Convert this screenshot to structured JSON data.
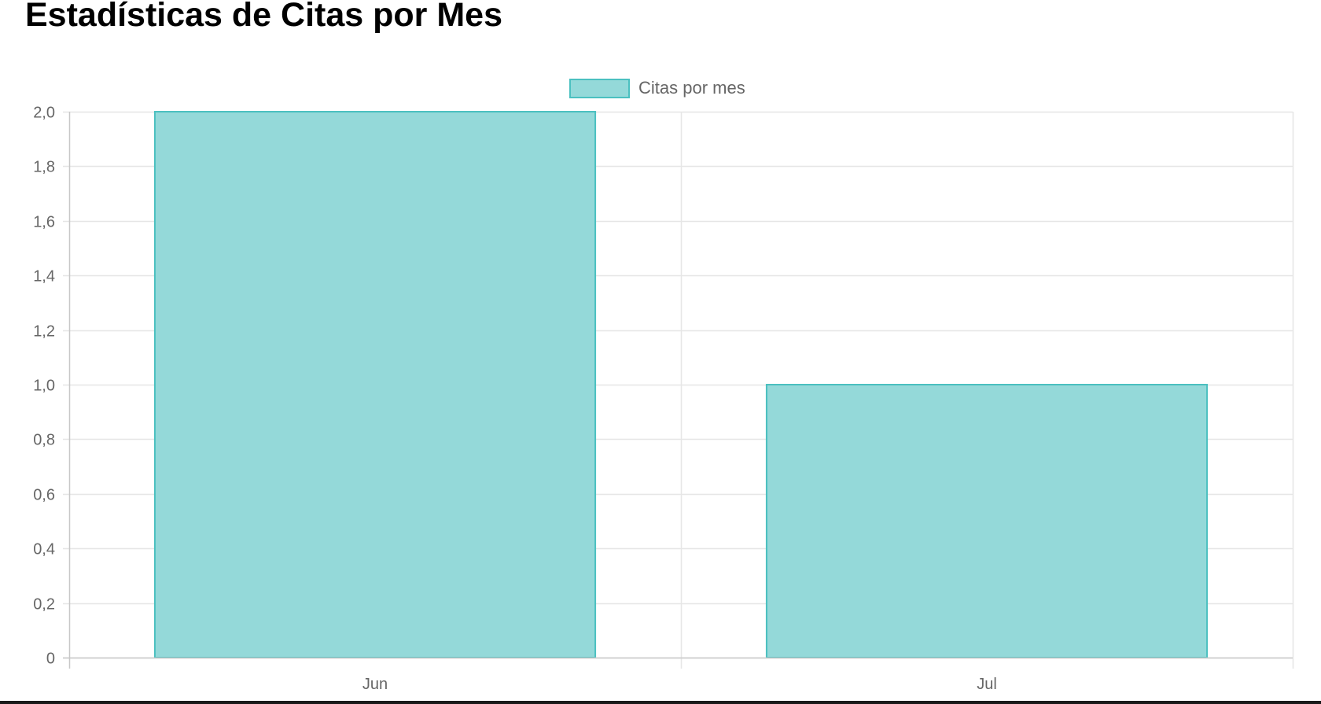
{
  "page": {
    "title": "Estadísticas de Citas por Mes"
  },
  "chart_data": {
    "type": "bar",
    "categories": [
      "Jun",
      "Jul"
    ],
    "series": [
      {
        "name": "Citas por mes",
        "values": [
          2,
          1
        ],
        "fill_color": "#94d9d9",
        "border_color": "#4bc0c0"
      }
    ],
    "ylim": [
      0,
      2
    ],
    "y_ticks": [
      0,
      0.2,
      0.4,
      0.6,
      0.8,
      1.0,
      1.2,
      1.4,
      1.6,
      1.8,
      2.0
    ],
    "y_tick_labels": [
      "0",
      "0,2",
      "0,4",
      "0,6",
      "0,8",
      "1,0",
      "1,2",
      "1,4",
      "1,6",
      "1,8",
      "2,0"
    ],
    "xlabel": "",
    "ylabel": "",
    "grid": true,
    "legend_position": "top-center"
  },
  "colors": {
    "grid": "#e6e6e6",
    "axis": "#c8c8c8",
    "tick_text": "#666666"
  }
}
